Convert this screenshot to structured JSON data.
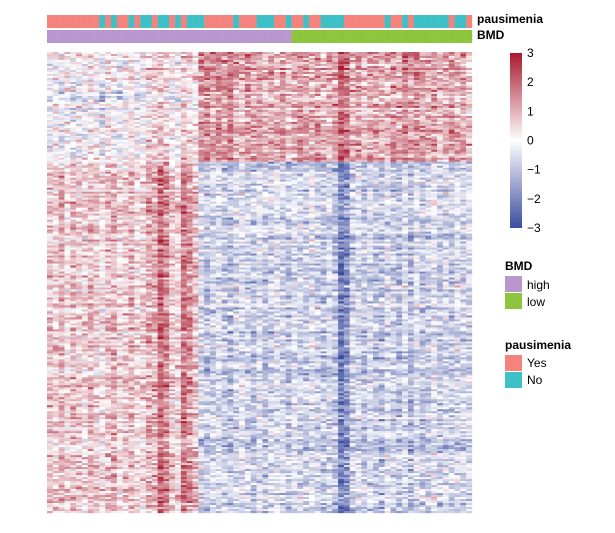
{
  "chart_data": {
    "type": "heatmap",
    "n_columns": 73,
    "n_rows": 231,
    "row_clusters": {
      "top_rows": 55,
      "bottom_rows": 176
    },
    "color_scale": {
      "min": -3,
      "max": 3,
      "low_color": "#3C4DA0",
      "mid_color": "#FFFFFF",
      "high_color": "#A8192E",
      "ticks": [
        "3",
        "2",
        "1",
        "0",
        "−1",
        "−2",
        "−3"
      ]
    },
    "column_mean_top": [
      -0.2,
      0.1,
      -0.3,
      0.2,
      -0.4,
      0.0,
      -0.2,
      0.3,
      -0.1,
      -0.5,
      0.2,
      0.0,
      -0.3,
      0.1,
      0.4,
      -0.2,
      0.0,
      0.3,
      0.5,
      0.8,
      0.6,
      0.1,
      -0.1,
      0.7,
      0.4,
      0.2,
      1.4,
      1.6,
      1.2,
      1.5,
      1.3,
      1.7,
      1.2,
      1.0,
      1.4,
      1.1,
      1.3,
      0.9,
      1.2,
      1.0,
      1.3,
      0.8,
      1.1,
      1.4,
      1.2,
      1.0,
      1.3,
      0.9,
      1.1,
      1.2,
      2.0,
      1.8,
      1.0,
      1.3,
      0.8,
      1.1,
      1.2,
      0.9,
      1.0,
      1.4,
      1.1,
      1.6,
      1.3,
      1.5,
      1.2,
      1.0,
      1.4,
      0.9,
      1.1,
      1.3,
      1.0,
      1.2,
      0.8
    ],
    "column_mean_bottom": [
      0.8,
      0.6,
      1.0,
      0.4,
      0.9,
      0.7,
      0.5,
      1.0,
      0.6,
      0.3,
      0.8,
      1.1,
      0.5,
      0.7,
      0.9,
      0.4,
      0.6,
      1.2,
      1.0,
      2.0,
      1.6,
      0.7,
      0.5,
      1.8,
      1.4,
      0.9,
      -0.6,
      -0.9,
      -0.7,
      -0.5,
      -0.8,
      -1.0,
      -0.6,
      -0.4,
      -0.7,
      -0.9,
      -0.5,
      -0.8,
      -0.6,
      -0.3,
      -0.7,
      -0.9,
      -0.5,
      -0.6,
      -0.8,
      -0.4,
      -0.7,
      -0.9,
      -0.6,
      -1.0,
      -2.2,
      -1.8,
      -0.7,
      -0.5,
      -0.9,
      -0.6,
      -0.8,
      -1.0,
      -0.4,
      -0.7,
      -0.9,
      -0.6,
      -1.1,
      -0.5,
      -0.8,
      -0.7,
      -0.3,
      -0.9,
      -0.6,
      -0.8,
      -0.5,
      -0.7,
      -0.6
    ],
    "annotations": {
      "pausimenia": {
        "label": "pausimenia",
        "is_yes": [
          1,
          1,
          1,
          1,
          1,
          1,
          1,
          1,
          1,
          0,
          1,
          0,
          1,
          1,
          0,
          1,
          0,
          0,
          1,
          0,
          0,
          1,
          0,
          1,
          0,
          0,
          0,
          1,
          1,
          1,
          1,
          1,
          0,
          1,
          1,
          1,
          0,
          0,
          0,
          1,
          1,
          0,
          1,
          1,
          0,
          1,
          1,
          0,
          0,
          0,
          0,
          1,
          1,
          1,
          1,
          1,
          1,
          1,
          0,
          1,
          1,
          0,
          1,
          0,
          0,
          0,
          0,
          0,
          0,
          1,
          0,
          0,
          1
        ]
      },
      "BMD": {
        "label": "BMD",
        "high_columns": 42,
        "low_columns": 31
      }
    },
    "legends": [
      {
        "title": "BMD",
        "items": [
          {
            "label": "high",
            "color": "#B996CE"
          },
          {
            "label": "low",
            "color": "#8DC53E"
          }
        ]
      },
      {
        "title": "pausimenia",
        "items": [
          {
            "label": "Yes",
            "color": "#F4837D"
          },
          {
            "label": "No",
            "color": "#3EC0C7"
          }
        ]
      }
    ]
  }
}
